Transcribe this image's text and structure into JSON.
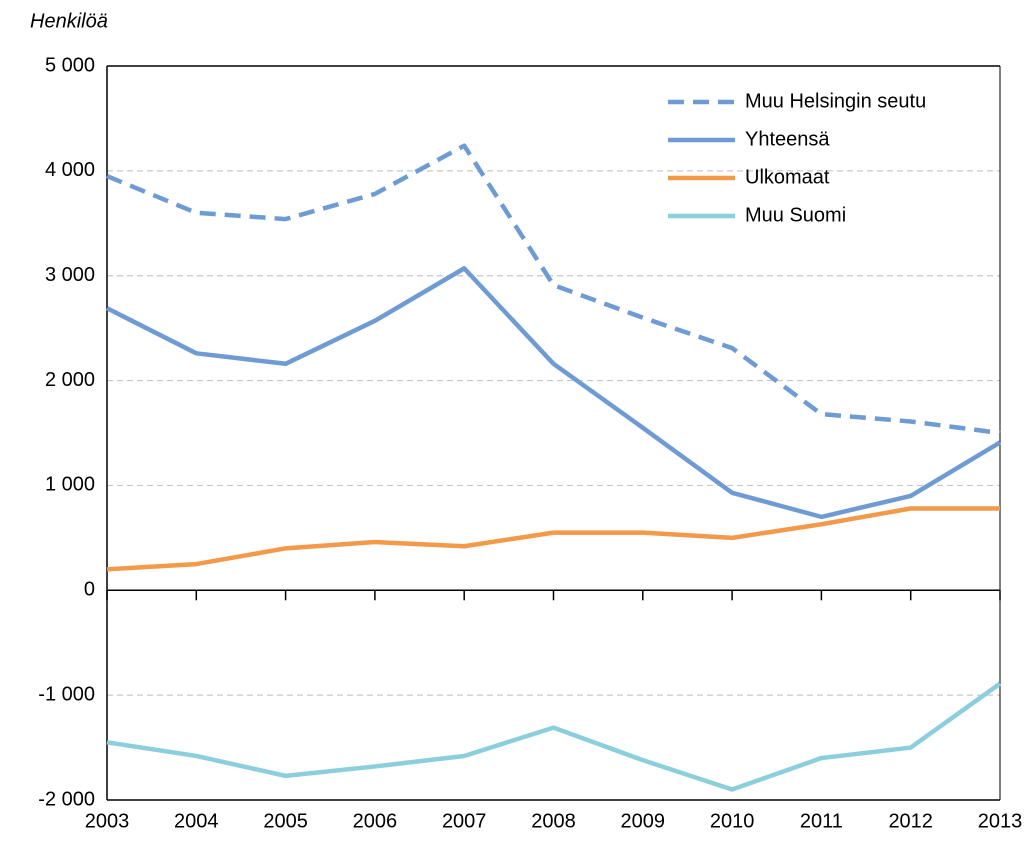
{
  "chart_data": {
    "type": "line",
    "y_label": "Henkilöä",
    "x": [
      2003,
      2004,
      2005,
      2006,
      2007,
      2008,
      2009,
      2010,
      2011,
      2012,
      2013
    ],
    "xlim": [
      2003,
      2013
    ],
    "xticks": [
      2003,
      2004,
      2005,
      2006,
      2007,
      2008,
      2009,
      2010,
      2011,
      2012,
      2013
    ],
    "ylim": [
      -2000,
      5000
    ],
    "yticks": [
      {
        "value": -2000,
        "label": "-2 000"
      },
      {
        "value": -1000,
        "label": "-1 000"
      },
      0,
      {
        "value": 1000,
        "label": "1 000"
      },
      {
        "value": 2000,
        "label": "2 000"
      },
      {
        "value": 3000,
        "label": "3 000"
      },
      {
        "value": 4000,
        "label": "4 000"
      },
      {
        "value": 5000,
        "label": "5 000"
      }
    ],
    "grid": true,
    "legend": "top-right",
    "series": [
      {
        "name": "Muu Helsingin seutu",
        "color": "#6f9bd4",
        "style": "dashed",
        "values": [
          3950,
          3600,
          3540,
          3780,
          4240,
          2910,
          2600,
          2310,
          1680,
          1610,
          1500
        ]
      },
      {
        "name": "Yhteensä",
        "color": "#6f9bd4",
        "style": "solid",
        "values": [
          2690,
          2260,
          2160,
          2570,
          3070,
          2160,
          1550,
          930,
          700,
          900,
          1410
        ]
      },
      {
        "name": "Ulkomaat",
        "color": "#f39a4a",
        "style": "solid",
        "values": [
          200,
          250,
          400,
          460,
          420,
          550,
          550,
          500,
          630,
          780,
          780
        ]
      },
      {
        "name": "Muu Suomi",
        "color": "#8ccfdc",
        "style": "solid",
        "values": [
          -1450,
          -1580,
          -1770,
          -1680,
          -1580,
          -1310,
          -1620,
          -1900,
          -1600,
          -1500,
          -890
        ]
      }
    ]
  }
}
